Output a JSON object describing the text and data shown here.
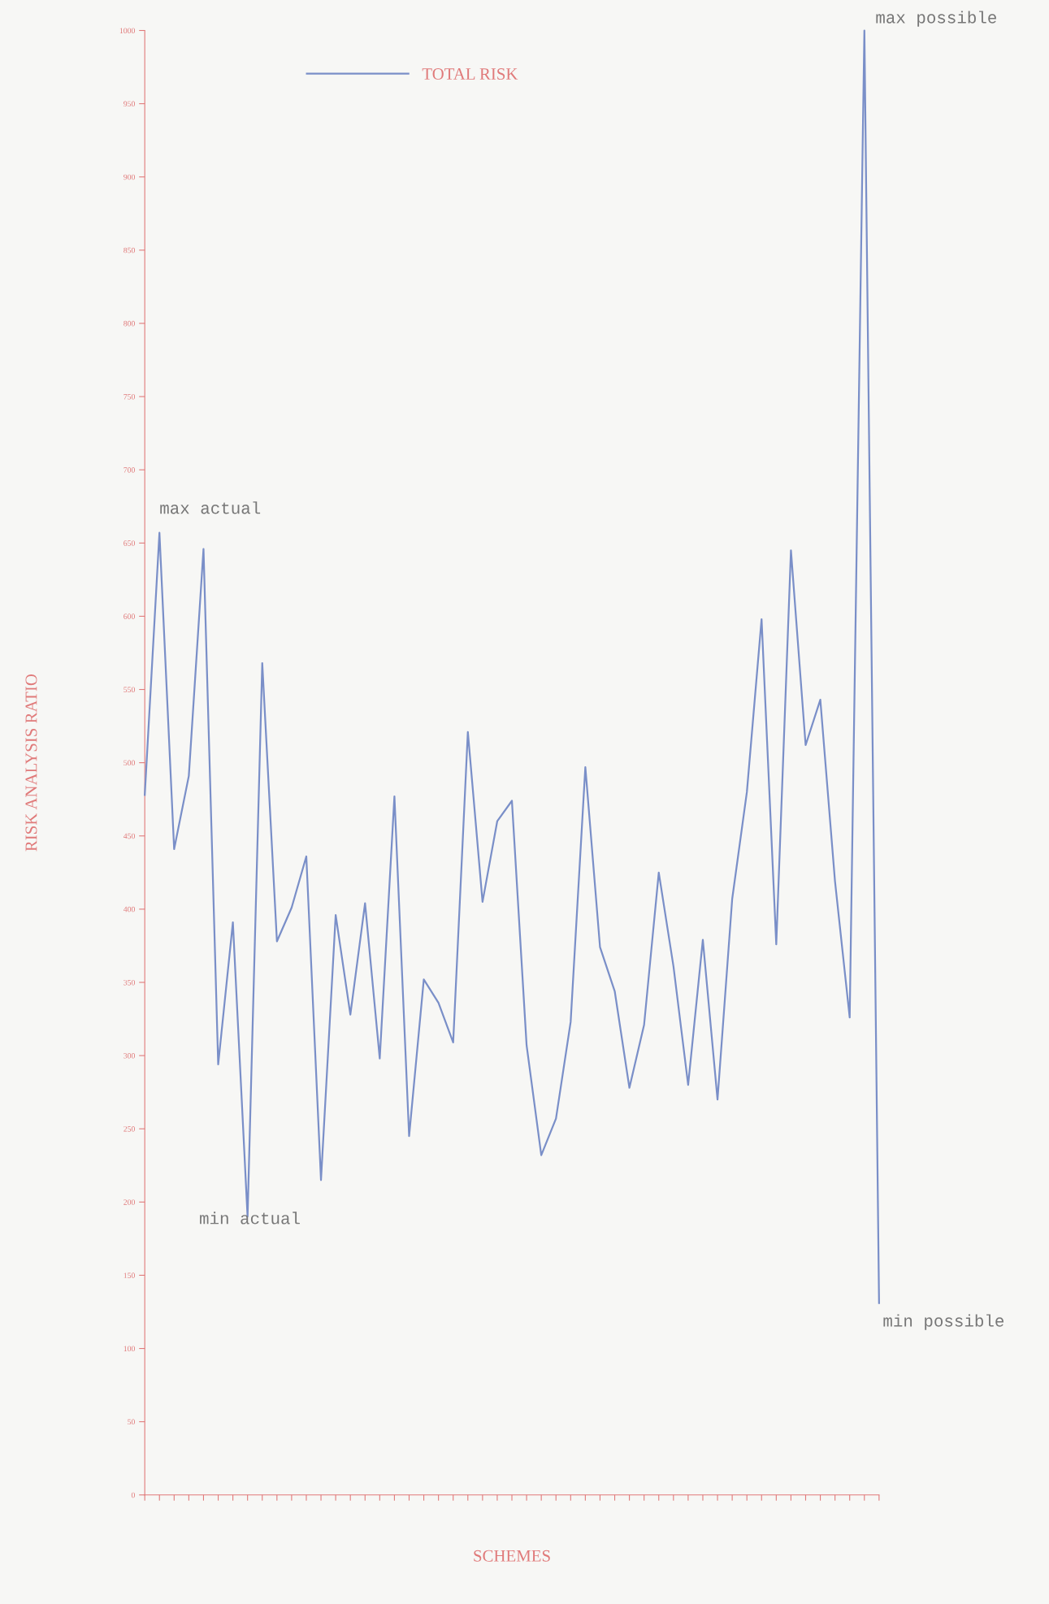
{
  "chart_data": {
    "type": "line",
    "xlabel": "SCHEMES",
    "ylabel": "RISK ANALYSIS RATIO",
    "categories": [
      null,
      null,
      null,
      null,
      null,
      null,
      null,
      null,
      null,
      null,
      null,
      null,
      null,
      null,
      null,
      null,
      null,
      null,
      null,
      null,
      null,
      null,
      null,
      null,
      null,
      null,
      null,
      null,
      null,
      null,
      null,
      null,
      null,
      null,
      null,
      null,
      null,
      null,
      null,
      null,
      null,
      null,
      null,
      null,
      null,
      null,
      null,
      null,
      null,
      null,
      null
    ],
    "series": [
      {
        "name": "TOTAL RISK",
        "color": "#7a8fc8",
        "values": [
          478,
          657,
          441,
          491,
          646,
          294,
          391,
          190,
          568,
          378,
          401,
          436,
          215,
          396,
          328,
          404,
          298,
          477,
          245,
          352,
          336,
          309,
          521,
          405,
          460,
          474,
          307,
          232,
          257,
          323,
          497,
          374,
          344,
          278,
          321,
          425,
          361,
          280,
          379,
          270,
          407,
          480,
          598,
          376,
          645,
          512,
          543,
          419,
          326,
          1000,
          131
        ]
      }
    ],
    "ylim": [
      0,
      1000
    ],
    "yticks": [
      0,
      50,
      100,
      150,
      200,
      250,
      300,
      350,
      400,
      450,
      500,
      550,
      600,
      650,
      700,
      750,
      800,
      850,
      900,
      950,
      1000
    ],
    "annotations": [
      "max actual",
      "min actual",
      "max possible",
      "min possible"
    ],
    "legend": "top left",
    "grid": false,
    "marker": "none",
    "line_style": "solid"
  }
}
